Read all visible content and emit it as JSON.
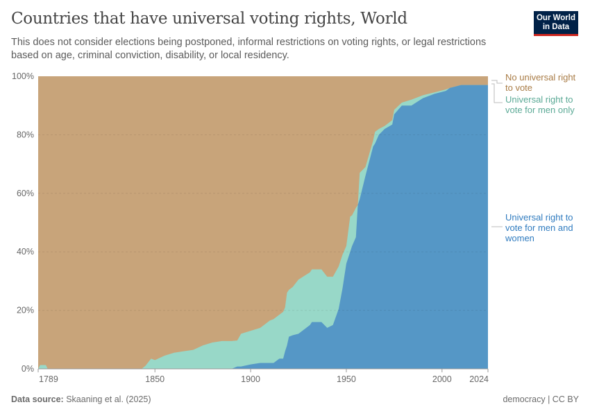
{
  "header": {
    "title": "Countries that have universal voting rights, World",
    "subtitle": "This does not consider elections being postponed, informal restrictions on voting rights, or legal restrictions based on age, criminal conviction, disability, or local residency.",
    "logo": "Our World in Data"
  },
  "footer": {
    "source_label": "Data source:",
    "source": "Skaaning et al. (2025)",
    "license": "democracy | CC BY"
  },
  "chart_data": {
    "type": "area",
    "stacked": true,
    "normalized": true,
    "xlim": [
      1789,
      2024
    ],
    "ylim": [
      0,
      100
    ],
    "x_ticks": [
      "1789",
      "1850",
      "1900",
      "1950",
      "2000",
      "2024"
    ],
    "y_ticks": [
      "0%",
      "20%",
      "40%",
      "60%",
      "80%",
      "100%"
    ],
    "grid": "horizontal dashed",
    "legend_placement": "right, inline labels",
    "colors": {
      "none": "#c8a47a",
      "men_only": "#98d8c8",
      "universal": "#5597c6"
    },
    "label_colors": {
      "none": "#a87b45",
      "men_only": "#5aa995",
      "universal": "#2f7bbf"
    },
    "x": [
      1789,
      1790,
      1793,
      1794,
      1843,
      1845,
      1848,
      1850,
      1855,
      1860,
      1865,
      1870,
      1875,
      1880,
      1885,
      1890,
      1893,
      1895,
      1900,
      1905,
      1910,
      1912,
      1915,
      1917,
      1918,
      1919,
      1920,
      1922,
      1925,
      1931,
      1932,
      1937,
      1940,
      1943,
      1946,
      1948,
      1950,
      1952,
      1953,
      1955,
      1956,
      1957,
      1960,
      1964,
      1965,
      1967,
      1970,
      1974,
      1975,
      1979,
      1984,
      1990,
      1996,
      2002,
      2004,
      2010,
      2012,
      2024
    ],
    "series": [
      {
        "name": "Universal right to vote for men and women",
        "key": "universal",
        "values": [
          0,
          0,
          0,
          0,
          0,
          0,
          0,
          0,
          0,
          0,
          0,
          0,
          0,
          0,
          0,
          0,
          0.8,
          0.8,
          1.5,
          2,
          2,
          2,
          3.5,
          3.5,
          6,
          8,
          11,
          11.5,
          12,
          15,
          16,
          16,
          14,
          15,
          20.5,
          27.5,
          36,
          40,
          42,
          45,
          56,
          58,
          66,
          76,
          77,
          80,
          82,
          83.5,
          87,
          90,
          90,
          92.5,
          94,
          95,
          96,
          97,
          97,
          97
        ]
      },
      {
        "name": "Universal right to vote for men only",
        "key": "men_only",
        "values": [
          0,
          1.3,
          1.3,
          0,
          0,
          1,
          3.5,
          3,
          4.5,
          5.5,
          6,
          6.5,
          8,
          9,
          9.5,
          9.5,
          9.7,
          12,
          13,
          14,
          16.5,
          17,
          18.5,
          19.5,
          21,
          26,
          27,
          28,
          30.5,
          33,
          34,
          34,
          31.5,
          31.5,
          35,
          39,
          42,
          52,
          52.5,
          55,
          56,
          67,
          69,
          78,
          81,
          82,
          83,
          85,
          88.5,
          91,
          92,
          93.5,
          94.5,
          95.5,
          96,
          97,
          97,
          97
        ]
      },
      {
        "name": "No universal right to vote",
        "key": "none",
        "values": "remainder to 100%"
      }
    ],
    "labels": {
      "none": "No universal right to vote",
      "men_only": "Universal right to vote for men only",
      "universal": "Universal right to vote for men and women"
    }
  }
}
